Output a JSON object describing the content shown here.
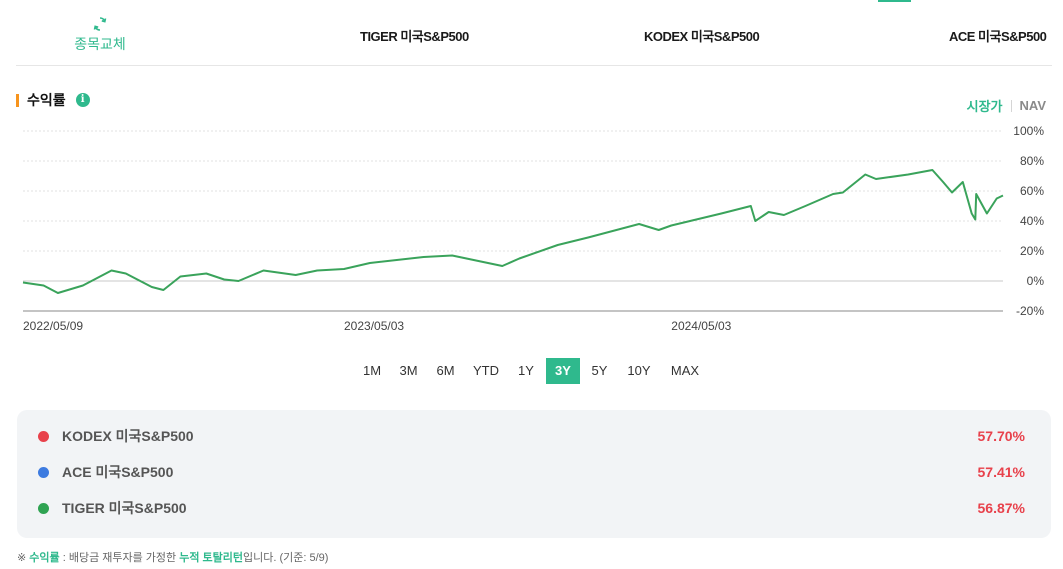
{
  "header": {
    "swap_label": "종목교체",
    "funds": [
      "TIGER 미국S&P500",
      "KODEX 미국S&P500",
      "ACE 미국S&P500"
    ]
  },
  "section": {
    "title": "수익률",
    "info_icon": "info-icon",
    "toggle": {
      "active": "시장가",
      "inactive": "NAV"
    }
  },
  "chart_data": {
    "type": "line",
    "ytick_labels": [
      "100%",
      "80%",
      "60%",
      "40%",
      "20%",
      "0%",
      "-20%"
    ],
    "yticks": [
      100,
      80,
      60,
      40,
      20,
      0,
      -20
    ],
    "ylim": [
      -20,
      100
    ],
    "xtick_labels": [
      "2022/05/09",
      "2023/05/03",
      "2024/05/03"
    ],
    "x_range": [
      "2022/05/09",
      "2025/05/09"
    ],
    "grid": true,
    "series": [
      {
        "color": "#3aa35b",
        "points": [
          [
            "2022/05/09",
            -1
          ],
          [
            "2022/06/01",
            -3
          ],
          [
            "2022/06/17",
            -8
          ],
          [
            "2022/07/15",
            -3
          ],
          [
            "2022/08/16",
            7
          ],
          [
            "2022/09/01",
            5
          ],
          [
            "2022/09/30",
            -4
          ],
          [
            "2022/10/13",
            -6
          ],
          [
            "2022/11/01",
            3
          ],
          [
            "2022/11/30",
            5
          ],
          [
            "2022/12/20",
            1
          ],
          [
            "2023/01/05",
            0
          ],
          [
            "2023/02/02",
            7
          ],
          [
            "2023/03/10",
            4
          ],
          [
            "2023/04/03",
            7
          ],
          [
            "2023/05/03",
            8
          ],
          [
            "2023/06/01",
            12
          ],
          [
            "2023/07/31",
            16
          ],
          [
            "2023/09/01",
            17
          ],
          [
            "2023/10/27",
            10
          ],
          [
            "2023/11/15",
            15
          ],
          [
            "2023/12/28",
            24
          ],
          [
            "2024/01/31",
            29
          ],
          [
            "2024/03/28",
            38
          ],
          [
            "2024/04/19",
            34
          ],
          [
            "2024/05/03",
            37
          ],
          [
            "2024/06/28",
            45
          ],
          [
            "2024/07/31",
            50
          ],
          [
            "2024/08/05",
            40
          ],
          [
            "2024/08/20",
            46
          ],
          [
            "2024/09/06",
            44
          ],
          [
            "2024/09/30",
            50
          ],
          [
            "2024/10/31",
            58
          ],
          [
            "2024/11/11",
            59
          ],
          [
            "2024/12/06",
            71
          ],
          [
            "2024/12/18",
            68
          ],
          [
            "2025/01/23",
            71
          ],
          [
            "2025/02/19",
            74
          ],
          [
            "2025/03/03",
            66
          ],
          [
            "2025/03/13",
            59
          ],
          [
            "2025/03/25",
            66
          ],
          [
            "2025/04/04",
            45
          ],
          [
            "2025/04/08",
            41
          ],
          [
            "2025/04/09",
            58
          ],
          [
            "2025/04/21",
            45
          ],
          [
            "2025/05/02",
            55
          ],
          [
            "2025/05/09",
            57
          ]
        ]
      }
    ]
  },
  "periods": [
    "1M",
    "3M",
    "6M",
    "YTD",
    "1Y",
    "3Y",
    "5Y",
    "10Y",
    "MAX"
  ],
  "active_period": "3Y",
  "returns": [
    {
      "name": "KODEX 미국S&P500",
      "value": "57.70%",
      "color": "#e8414b"
    },
    {
      "name": "ACE 미국S&P500",
      "value": "57.41%",
      "color": "#3d7be0"
    },
    {
      "name": "TIGER 미국S&P500",
      "value": "56.87%",
      "color": "#2fa352"
    }
  ],
  "footnote": {
    "prefix": "※ ",
    "term": "수익률",
    "mid": " : 배당금 재투자를 가정한 ",
    "term2": "누적 토탈리턴",
    "suffix": "입니다. (기준: 5/9)"
  }
}
